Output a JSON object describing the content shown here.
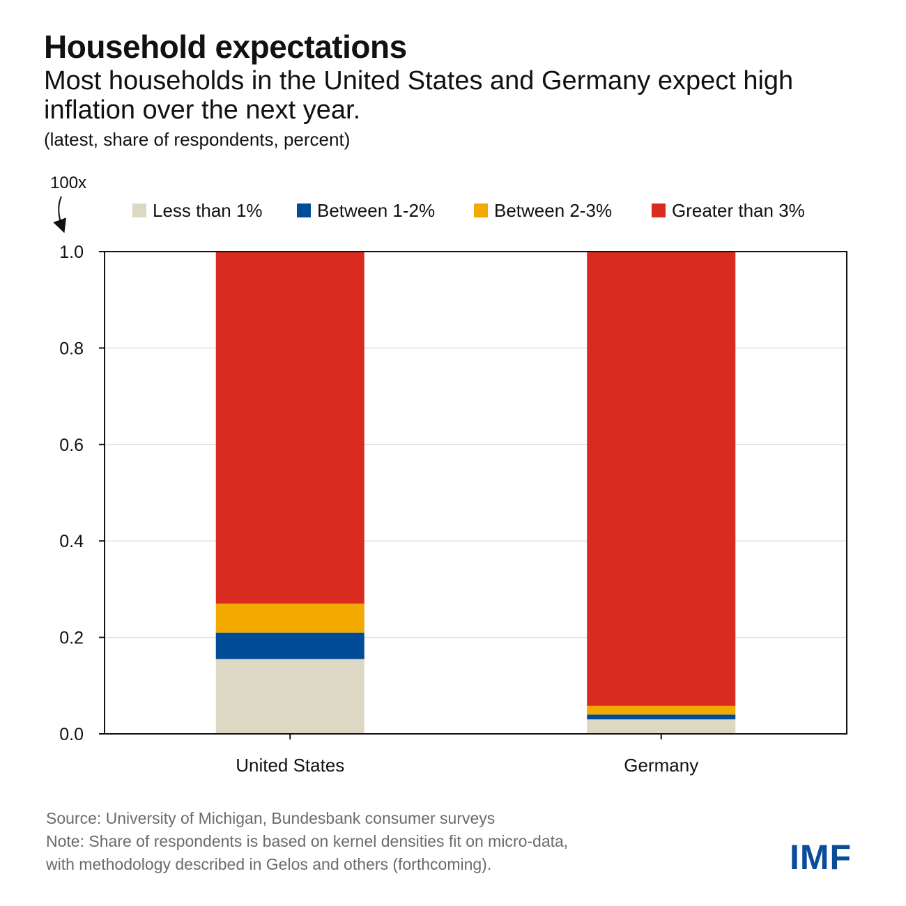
{
  "header": {
    "title": "Household expectations",
    "subtitle": "Most households in the United States and Germany expect high inflation over the next year.",
    "units": "(latest, share of respondents, percent)"
  },
  "chart_data": {
    "type": "bar",
    "stacked": true,
    "axis_annotation": "100x",
    "categories": [
      "United States",
      "Germany"
    ],
    "series": [
      {
        "name": "Less than 1%",
        "color": "#ddd8c4",
        "values": [
          0.155,
          0.03
        ]
      },
      {
        "name": "Between 1-2%",
        "color": "#004c97",
        "values": [
          0.055,
          0.01
        ]
      },
      {
        "name": "Between 2-3%",
        "color": "#f2a900",
        "values": [
          0.06,
          0.018
        ]
      },
      {
        "name": "Greater than 3%",
        "color": "#d92b1f",
        "values": [
          0.73,
          0.942
        ]
      }
    ],
    "ylim": [
      0,
      1
    ],
    "yticks": [
      "0.0",
      "0.2",
      "0.4",
      "0.6",
      "0.8",
      "1.0"
    ],
    "grid": true,
    "legend_position": "top"
  },
  "footer": {
    "source": "Source: University of Michigan, Bundesbank consumer surveys",
    "note_line1": "Note: Share of respondents is based on kernel densities fit on micro-data,",
    "note_line2": "with methodology described in Gelos and others (forthcoming)."
  },
  "logo": "IMF"
}
